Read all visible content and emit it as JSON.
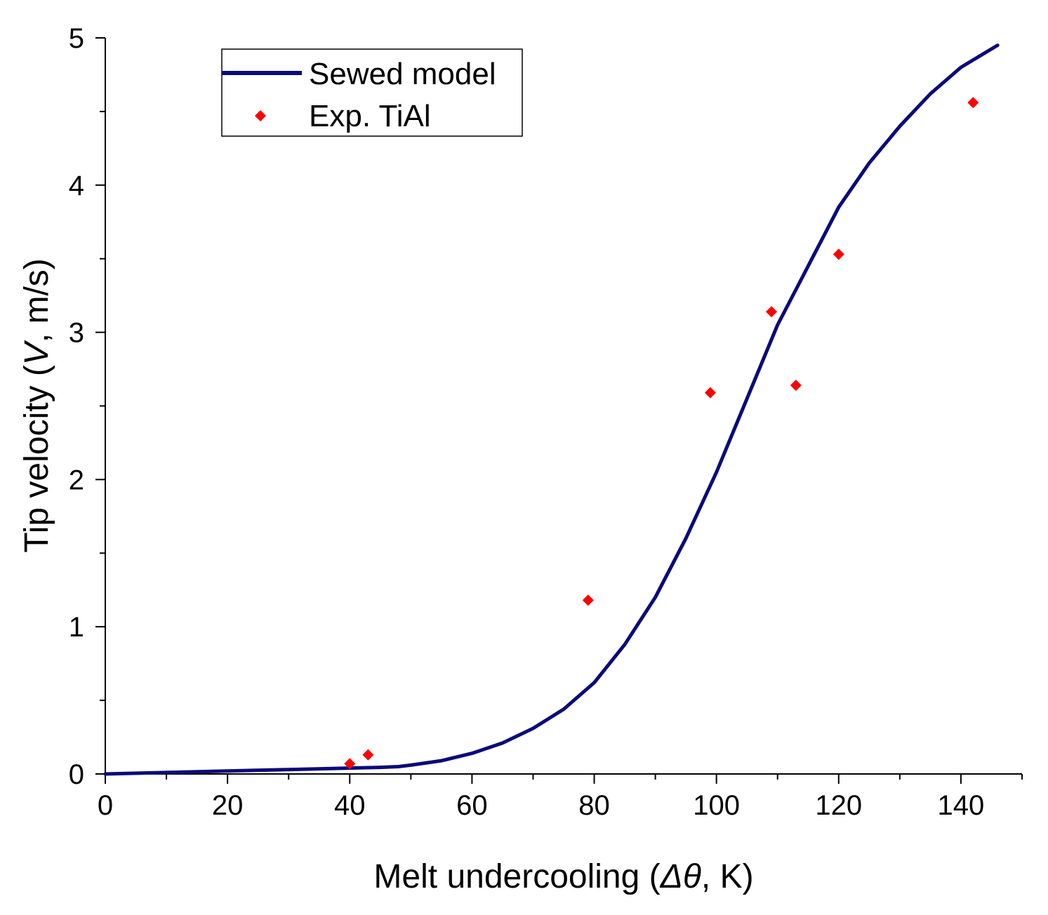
{
  "chart_data": {
    "type": "line",
    "title": "",
    "xlabel": {
      "prefix": "Melt undercooling (",
      "symbol": "Δθ",
      "suffix": ", K)"
    },
    "ylabel": {
      "prefix": "Tip velocity (",
      "symbol": "V",
      "suffix": ", m/s)"
    },
    "xlim": [
      0,
      150
    ],
    "ylim": [
      0,
      5
    ],
    "x_major_ticks": [
      0,
      20,
      40,
      60,
      80,
      100,
      120,
      140
    ],
    "x_tick_labels": [
      "0",
      "20",
      "40",
      "60",
      "80",
      "100",
      "120",
      "140"
    ],
    "x_minor_step": 10,
    "y_major_ticks": [
      0,
      1,
      2,
      3,
      4,
      5
    ],
    "y_tick_labels": [
      "0",
      "1",
      "2",
      "3",
      "4",
      "5"
    ],
    "y_minor_step": 0.5,
    "grid": false,
    "legend_position": "top-left",
    "series": [
      {
        "name": "Sewed model",
        "kind": "line",
        "color": "#0a0a7a",
        "x": [
          0,
          10,
          20,
          30,
          40,
          45,
          48,
          50,
          55,
          60,
          65,
          70,
          75,
          80,
          85,
          90,
          95,
          100,
          105,
          110,
          115,
          120,
          125,
          130,
          135,
          140,
          146
        ],
        "y": [
          0.0,
          0.01,
          0.02,
          0.03,
          0.04,
          0.045,
          0.05,
          0.06,
          0.09,
          0.14,
          0.21,
          0.31,
          0.44,
          0.62,
          0.88,
          1.2,
          1.6,
          2.05,
          2.55,
          3.05,
          3.45,
          3.85,
          4.15,
          4.4,
          4.62,
          4.8,
          4.95
        ]
      },
      {
        "name": "Exp. TiAl",
        "kind": "scatter",
        "color": "#ff0000",
        "x": [
          40,
          43,
          79,
          99,
          109,
          113,
          120,
          142
        ],
        "y": [
          0.07,
          0.13,
          1.18,
          2.59,
          3.14,
          2.64,
          3.53,
          4.56
        ]
      }
    ]
  }
}
